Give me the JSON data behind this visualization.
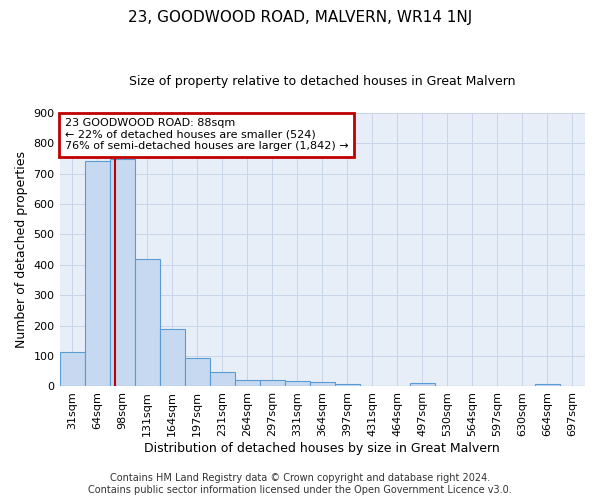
{
  "title": "23, GOODWOOD ROAD, MALVERN, WR14 1NJ",
  "subtitle": "Size of property relative to detached houses in Great Malvern",
  "xlabel": "Distribution of detached houses by size in Great Malvern",
  "ylabel": "Number of detached properties",
  "categories": [
    "31sqm",
    "64sqm",
    "98sqm",
    "131sqm",
    "164sqm",
    "197sqm",
    "231sqm",
    "264sqm",
    "297sqm",
    "331sqm",
    "364sqm",
    "397sqm",
    "431sqm",
    "464sqm",
    "497sqm",
    "530sqm",
    "564sqm",
    "597sqm",
    "630sqm",
    "664sqm",
    "697sqm"
  ],
  "values": [
    113,
    740,
    748,
    420,
    188,
    95,
    46,
    20,
    20,
    18,
    15,
    8,
    0,
    0,
    10,
    0,
    0,
    0,
    0,
    8,
    0
  ],
  "bar_color": "#c6d9f0",
  "bar_edge_color": "#5b9bd5",
  "bar_edge_width": 0.8,
  "annotation_text": "23 GOODWOOD ROAD: 88sqm\n← 22% of detached houses are smaller (524)\n76% of semi-detached houses are larger (1,842) →",
  "annotation_box_color": "#ffffff",
  "annotation_box_edge_color": "#c00000",
  "ylim": [
    0,
    900
  ],
  "yticks": [
    0,
    100,
    200,
    300,
    400,
    500,
    600,
    700,
    800,
    900
  ],
  "grid_color": "#c8d4e8",
  "background_color": "#e8eef8",
  "footer_line1": "Contains HM Land Registry data © Crown copyright and database right 2024.",
  "footer_line2": "Contains public sector information licensed under the Open Government Licence v3.0.",
  "title_fontsize": 11,
  "subtitle_fontsize": 9,
  "axis_label_fontsize": 9,
  "tick_fontsize": 8,
  "footer_fontsize": 7,
  "ann_fontsize": 8
}
